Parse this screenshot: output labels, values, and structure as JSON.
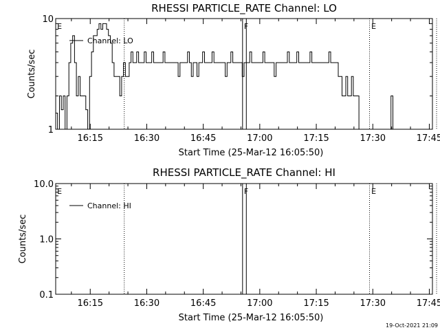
{
  "chart_data": [
    {
      "type": "line",
      "title": "RHESSI PARTICLE_RATE Channel: LO",
      "xlabel": "Start Time (25-Mar-12 16:05:50)",
      "ylabel": "Counts/sec",
      "yscale": "log",
      "ylim": [
        1,
        10
      ],
      "xlim_minutes": [
        0,
        100
      ],
      "x_unit": "minutes after 16:05:50",
      "ytick_labels": [
        {
          "value": 1,
          "label": "1"
        },
        {
          "value": 10,
          "label": "10"
        }
      ],
      "xtick_labels": [
        {
          "value": 9.17,
          "label": "16:15"
        },
        {
          "value": 24.17,
          "label": "16:30"
        },
        {
          "value": 39.17,
          "label": "16:45"
        },
        {
          "value": 54.17,
          "label": "17:00"
        },
        {
          "value": 69.17,
          "label": "17:15"
        },
        {
          "value": 84.17,
          "label": "17:30"
        },
        {
          "value": 99.17,
          "label": "17:45"
        }
      ],
      "legend": "top-left",
      "series": [
        {
          "name": "Channel: LO",
          "color": "#000000",
          "points": [
            [
              0,
              1.4
            ],
            [
              0.5,
              1.0
            ],
            [
              1.0,
              2.0
            ],
            [
              1.5,
              1.5
            ],
            [
              2.0,
              2.0
            ],
            [
              2.5,
              1.0
            ],
            [
              3.0,
              2.0
            ],
            [
              3.5,
              4.0
            ],
            [
              4.0,
              6.0
            ],
            [
              4.5,
              7.0
            ],
            [
              5.0,
              4.0
            ],
            [
              5.5,
              2.0
            ],
            [
              6.0,
              3.0
            ],
            [
              6.5,
              2.0
            ],
            [
              7.0,
              2.0
            ],
            [
              7.5,
              2.0
            ],
            [
              8.0,
              1.5
            ],
            [
              8.5,
              1.0
            ],
            [
              9.0,
              3.0
            ],
            [
              9.5,
              5.0
            ],
            [
              10.0,
              7.0
            ],
            [
              10.5,
              7.0
            ],
            [
              11.0,
              8.0
            ],
            [
              11.5,
              9.0
            ],
            [
              12.0,
              8.0
            ],
            [
              12.5,
              9.0
            ],
            [
              13.0,
              9.0
            ],
            [
              13.5,
              8.0
            ],
            [
              14.0,
              7.0
            ],
            [
              14.5,
              6.0
            ],
            [
              15.0,
              4.0
            ],
            [
              15.5,
              3.0
            ],
            [
              16.0,
              3.0
            ],
            [
              16.5,
              3.0
            ],
            [
              17.0,
              2.0
            ],
            [
              17.5,
              3.0
            ],
            [
              18.0,
              4.0
            ],
            [
              18.5,
              3.0
            ],
            [
              19.0,
              3.0
            ],
            [
              19.5,
              4.0
            ],
            [
              20.0,
              5.0
            ],
            [
              20.5,
              4.0
            ],
            [
              21.0,
              4.0
            ],
            [
              21.5,
              5.0
            ],
            [
              22.0,
              4.0
            ],
            [
              22.5,
              4.0
            ],
            [
              23.0,
              4.0
            ],
            [
              23.5,
              5.0
            ],
            [
              24.0,
              4.0
            ],
            [
              24.5,
              4.0
            ],
            [
              25.0,
              4.0
            ],
            [
              25.5,
              5.0
            ],
            [
              26.0,
              4.0
            ],
            [
              26.5,
              4.0
            ],
            [
              27.0,
              4.0
            ],
            [
              27.5,
              4.0
            ],
            [
              28.0,
              4.0
            ],
            [
              28.5,
              5.0
            ],
            [
              29.0,
              4.0
            ],
            [
              29.5,
              4.0
            ],
            [
              30.0,
              4.0
            ],
            [
              30.5,
              4.0
            ],
            [
              31.0,
              4.0
            ],
            [
              31.5,
              4.0
            ],
            [
              32.0,
              4.0
            ],
            [
              32.5,
              3.0
            ],
            [
              33.0,
              4.0
            ],
            [
              33.5,
              4.0
            ],
            [
              34.0,
              4.0
            ],
            [
              34.5,
              4.0
            ],
            [
              35.0,
              5.0
            ],
            [
              35.5,
              4.0
            ],
            [
              36.0,
              3.0
            ],
            [
              36.5,
              4.0
            ],
            [
              37.0,
              4.0
            ],
            [
              37.5,
              3.0
            ],
            [
              38.0,
              4.0
            ],
            [
              38.5,
              4.0
            ],
            [
              39.0,
              5.0
            ],
            [
              39.5,
              4.0
            ],
            [
              40.0,
              4.0
            ],
            [
              40.5,
              4.0
            ],
            [
              41.0,
              4.0
            ],
            [
              41.5,
              5.0
            ],
            [
              42.0,
              4.0
            ],
            [
              42.5,
              4.0
            ],
            [
              43.0,
              4.0
            ],
            [
              43.5,
              4.0
            ],
            [
              44.0,
              4.0
            ],
            [
              44.5,
              4.0
            ],
            [
              45.0,
              3.0
            ],
            [
              45.5,
              4.0
            ],
            [
              46.0,
              4.0
            ],
            [
              46.5,
              5.0
            ],
            [
              47.0,
              4.0
            ],
            [
              47.5,
              4.0
            ],
            [
              48.0,
              4.0
            ],
            [
              48.5,
              4.0
            ],
            [
              49.0,
              4.0
            ],
            [
              49.5,
              3.0
            ],
            [
              50.0,
              4.0
            ],
            [
              50.5,
              4.0
            ],
            [
              51.0,
              4.0
            ],
            [
              51.5,
              5.0
            ],
            [
              52.0,
              4.0
            ],
            [
              52.5,
              4.0
            ],
            [
              53.0,
              4.0
            ],
            [
              53.5,
              4.0
            ],
            [
              54.0,
              4.0
            ],
            [
              54.5,
              4.0
            ],
            [
              55.0,
              5.0
            ],
            [
              55.5,
              4.0
            ],
            [
              56.0,
              4.0
            ],
            [
              56.5,
              4.0
            ],
            [
              57.0,
              4.0
            ],
            [
              57.5,
              4.0
            ],
            [
              58.0,
              3.0
            ],
            [
              58.5,
              4.0
            ],
            [
              59.0,
              4.0
            ],
            [
              59.5,
              4.0
            ],
            [
              60.0,
              4.0
            ],
            [
              60.5,
              4.0
            ],
            [
              61.0,
              4.0
            ],
            [
              61.5,
              5.0
            ],
            [
              62.0,
              4.0
            ],
            [
              62.5,
              4.0
            ],
            [
              63.0,
              4.0
            ],
            [
              63.5,
              4.0
            ],
            [
              64.0,
              5.0
            ],
            [
              64.5,
              4.0
            ],
            [
              65.0,
              4.0
            ],
            [
              65.5,
              4.0
            ],
            [
              66.0,
              4.0
            ],
            [
              66.5,
              4.0
            ],
            [
              67.0,
              4.0
            ],
            [
              67.5,
              5.0
            ],
            [
              68.0,
              4.0
            ],
            [
              68.5,
              4.0
            ],
            [
              69.0,
              4.0
            ],
            [
              69.5,
              4.0
            ],
            [
              70.0,
              4.0
            ],
            [
              70.5,
              4.0
            ],
            [
              71.0,
              4.0
            ],
            [
              71.5,
              4.0
            ],
            [
              72.0,
              4.0
            ],
            [
              72.5,
              5.0
            ],
            [
              73.0,
              4.0
            ],
            [
              73.5,
              4.0
            ],
            [
              74.0,
              4.0
            ],
            [
              74.5,
              4.0
            ],
            [
              75.0,
              3.0
            ],
            [
              75.5,
              3.0
            ],
            [
              76.0,
              2.0
            ],
            [
              76.5,
              2.0
            ],
            [
              77.0,
              3.0
            ],
            [
              77.5,
              2.0
            ],
            [
              78.0,
              2.0
            ],
            [
              78.5,
              3.0
            ],
            [
              79.0,
              2.0
            ],
            [
              79.5,
              2.0
            ],
            [
              80.0,
              2.0
            ],
            [
              80.5,
              1.0
            ],
            [
              81.0,
              1.0
            ],
            [
              81.5,
              1.0
            ],
            [
              82.0,
              1.0
            ],
            [
              82.5,
              1.0
            ],
            [
              83.0,
              1.0
            ],
            [
              83.5,
              1.0
            ],
            [
              84.0,
              1.0
            ],
            [
              84.5,
              1.0
            ],
            [
              85.0,
              1.0
            ],
            [
              85.5,
              1.0
            ],
            [
              86.0,
              1.0
            ],
            [
              86.5,
              1.0
            ],
            [
              87.0,
              1.0
            ],
            [
              87.5,
              1.0
            ],
            [
              88.0,
              1.0
            ],
            [
              88.5,
              1.0
            ],
            [
              89.0,
              2.0
            ],
            [
              89.5,
              1.0
            ]
          ]
        }
      ],
      "vlines": [
        {
          "x": 18.2,
          "style": "dotted"
        },
        {
          "x": 49.6,
          "style": "solid"
        },
        {
          "x": 50.6,
          "style": "solid"
        },
        {
          "x": 83.3,
          "style": "dotted"
        },
        {
          "x": 101.1,
          "style": "dotted"
        }
      ],
      "markers": [
        {
          "x": 0.2,
          "label": "E"
        },
        {
          "x": 49.8,
          "label": "F"
        },
        {
          "x": 83.6,
          "label": "E"
        }
      ]
    },
    {
      "type": "line",
      "title": "RHESSI PARTICLE_RATE Channel: HI",
      "xlabel": "Start Time (25-Mar-12 16:05:50)",
      "ylabel": "Counts/sec",
      "yscale": "log",
      "ylim": [
        0.1,
        10
      ],
      "xlim_minutes": [
        0,
        100
      ],
      "x_unit": "minutes after 16:05:50",
      "ytick_labels": [
        {
          "value": 0.1,
          "label": "0.1"
        },
        {
          "value": 1,
          "label": "1.0"
        },
        {
          "value": 10,
          "label": "10.0"
        }
      ],
      "xtick_labels": [
        {
          "value": 9.17,
          "label": "16:15"
        },
        {
          "value": 24.17,
          "label": "16:30"
        },
        {
          "value": 39.17,
          "label": "16:45"
        },
        {
          "value": 54.17,
          "label": "17:00"
        },
        {
          "value": 69.17,
          "label": "17:15"
        },
        {
          "value": 84.17,
          "label": "17:30"
        },
        {
          "value": 99.17,
          "label": "17:45"
        }
      ],
      "legend": "top-left",
      "series": [
        {
          "name": "Channel: HI",
          "color": "#000000",
          "points": []
        }
      ],
      "vlines": [
        {
          "x": 18.2,
          "style": "dotted"
        },
        {
          "x": 49.6,
          "style": "solid"
        },
        {
          "x": 50.6,
          "style": "solid"
        },
        {
          "x": 83.3,
          "style": "dotted"
        },
        {
          "x": 101.1,
          "style": "dotted"
        }
      ],
      "markers": [
        {
          "x": 0.2,
          "label": "E"
        },
        {
          "x": 49.8,
          "label": "F"
        },
        {
          "x": 83.6,
          "label": "E"
        }
      ]
    }
  ],
  "footer": {
    "timestamp": "19-Oct-2021 21:09"
  }
}
